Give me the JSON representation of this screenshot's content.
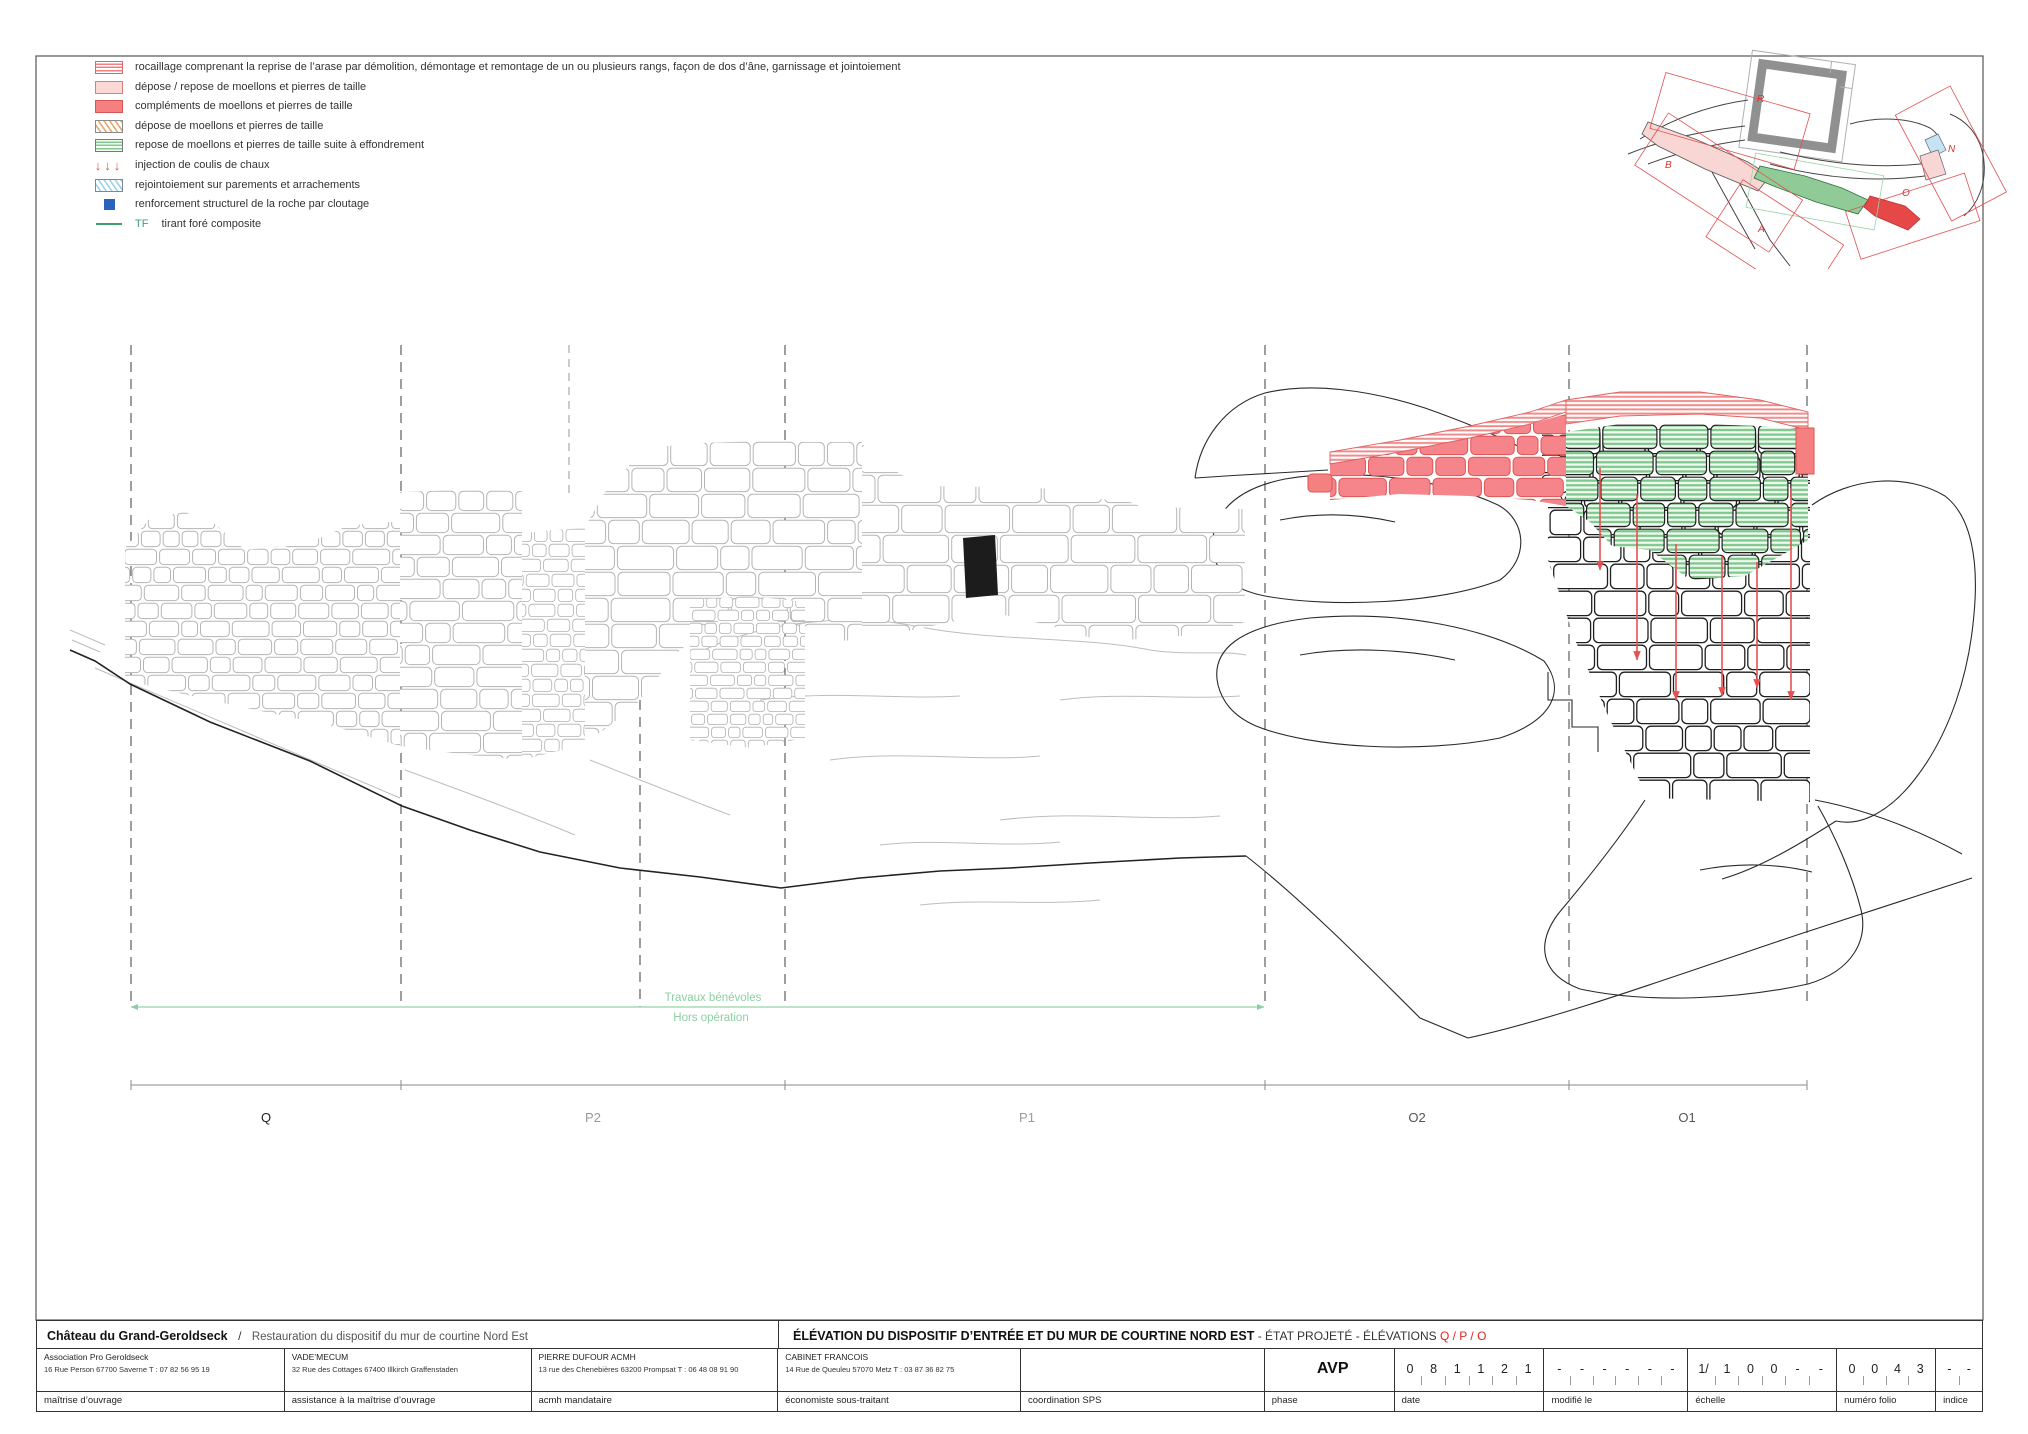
{
  "legend": {
    "items": [
      {
        "swatch": "red-hlines",
        "label": "rocaillage comprenant la reprise de l’arase par démolition, démontage et remontage de un ou plusieurs rangs, façon de dos d’âne, garnissage et jointoiement"
      },
      {
        "swatch": "pink-solid",
        "label": "dépose / repose de moellons et pierres de taille"
      },
      {
        "swatch": "red-solid",
        "label": "compléments de moellons et pierres de taille"
      },
      {
        "swatch": "orange-hatch",
        "label": "dépose de moellons et pierres de taille"
      },
      {
        "swatch": "green-hlines",
        "label": "repose de moellons et pierres de taille suite à effondrement"
      },
      {
        "swatch": "red-arrows",
        "label": "injection de coulis de chaux"
      },
      {
        "swatch": "blue-hatch",
        "label": "rejointoiement sur parements et arrachements"
      },
      {
        "swatch": "blue-square",
        "label": "renforcement structurel de la roche par cloutage"
      },
      {
        "swatch": "tf-line",
        "prefix": "TF",
        "label": "tirant foré composite"
      }
    ]
  },
  "key_plan": {
    "labels": [
      "R",
      "B",
      "A",
      "O",
      "N"
    ]
  },
  "elevation": {
    "zone_labels": [
      "Q",
      "P2",
      "P1",
      "O2",
      "O1"
    ],
    "annotation": {
      "line1": "Travaux bénévoles",
      "line2": "Hors opération"
    }
  },
  "title_block": {
    "project": {
      "name": "Château du Grand-Geroldseck",
      "separator": "/",
      "subtitle": "Restauration du dispositif du mur de courtine Nord Est"
    },
    "sheet_title": {
      "bold": "ÉLÉVATION DU DISPOSITIF D’ENTRÉE ET DU MUR DE COURTINE NORD EST",
      "normal": " - ÉTAT PROJETÉ - ÉLÉVATIONS ",
      "red": "Q / P / O"
    },
    "companies": [
      {
        "name": "Association Pro Geroldseck",
        "address": "16 Rue Person    67700 Saverne    T : 07 82 56 95 19",
        "role": "maîtrise d’ouvrage"
      },
      {
        "name": "VADE’MECUM",
        "address": "32 Rue des Cottages   67400 Illkirch Graffenstaden",
        "role": "assistance à la maîtrise d’ouvrage"
      },
      {
        "name": "PIERRE DUFOUR ACMH",
        "address": "13 rue des Chenebières   63200 Prompsat   T : 06 48 08 91 90",
        "role": "acmh mandataire"
      },
      {
        "name": "CABINET FRANCOIS",
        "address": "14 Rue de Queuleu      57070 Metz     T : 03 87 36 82 75",
        "role": "économiste sous-traitant"
      },
      {
        "name": "",
        "address": "",
        "role": "coordination SPS"
      }
    ],
    "phase": {
      "value": "AVP",
      "label": "phase"
    },
    "fields": [
      {
        "label": "date",
        "chars": [
          "0",
          "8",
          "1",
          "1",
          "2",
          "1"
        ]
      },
      {
        "label": "modifié le",
        "chars": [
          "-",
          "-",
          "-",
          "-",
          "-",
          "-"
        ]
      },
      {
        "label": "échelle",
        "chars": [
          "1/",
          "1",
          "0",
          "0",
          "-",
          "-"
        ]
      },
      {
        "label": "numéro folio",
        "chars": [
          "0",
          "0",
          "4",
          "3"
        ]
      },
      {
        "label": "indice",
        "chars": [
          "-",
          "-"
        ]
      }
    ]
  }
}
